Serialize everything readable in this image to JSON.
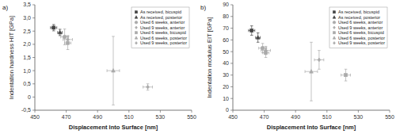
{
  "chart_data": [
    {
      "type": "scatter",
      "title": "a)",
      "xlabel": "Displacement Into Surface [nm]",
      "ylabel": "Indentation hardness HIT [GPa]",
      "xlim": [
        450,
        550
      ],
      "ylim": [
        -0.5,
        3.5
      ],
      "xticks": [
        450,
        470,
        490,
        510,
        530,
        550
      ],
      "yticks": [
        {
          "value": -0.5,
          "label": "-0,5"
        },
        0,
        {
          "value": 0.5,
          "label": "0,5"
        },
        {
          "value": 1.0,
          "label": "1,0"
        },
        {
          "value": 1.5,
          "label": "1,5"
        },
        {
          "value": 2.0,
          "label": "2,0"
        },
        {
          "value": 2.5,
          "label": "2,5"
        },
        {
          "value": 3.0,
          "label": "3,0"
        },
        {
          "value": 3.5,
          "label": "3,5"
        }
      ],
      "legend": "upper right",
      "series": [
        {
          "name": "As received, bicuspid",
          "color": "#444444",
          "marker": "square",
          "x": [
            462
          ],
          "values": [
            2.63
          ],
          "xerr": [
            2.0
          ],
          "yerr": [
            0.12
          ]
        },
        {
          "name": "As received, posterior",
          "color": "#444444",
          "marker": "triangle",
          "x": [
            466
          ],
          "values": [
            2.45
          ],
          "xerr": [
            1.5
          ],
          "yerr": [
            0.12
          ]
        },
        {
          "name": "Used 6 weeks, anterior",
          "color": "#aaaaaa",
          "marker": "circle",
          "x": [
            469
          ],
          "values": [
            2.28
          ],
          "xerr": [
            2.5
          ],
          "yerr": [
            0.3
          ]
        },
        {
          "name": "Used 9 weeks, anterior",
          "color": "#aaaaaa",
          "marker": "diamond",
          "x": [
            471
          ],
          "values": [
            2.18
          ],
          "xerr": [
            3.0
          ],
          "yerr": [
            0.15
          ]
        },
        {
          "name": "Used 6 weeks, bicuspid",
          "color": "#aaaaaa",
          "marker": "square",
          "x": [
            471
          ],
          "values": [
            2.05
          ],
          "xerr": [
            2.0
          ],
          "yerr": [
            0.25
          ]
        },
        {
          "name": "Used 6 weeks, posterior",
          "color": "#aaaaaa",
          "marker": "triangle",
          "x": [
            500
          ],
          "values": [
            1.0
          ],
          "xerr": [
            4.0
          ],
          "yerr": [
            1.3
          ]
        },
        {
          "name": "Used 9 weeks, posterior",
          "color": "#aaaaaa",
          "marker": "diamond",
          "x": [
            522
          ],
          "values": [
            0.38
          ],
          "xerr": [
            3.0
          ],
          "yerr": [
            0.12
          ]
        }
      ]
    },
    {
      "type": "scatter",
      "title": "b)",
      "xlabel": "Displacement Into Surface [nm]",
      "ylabel": "Indentation modulus EIT [GPa]",
      "xlim": [
        450,
        550
      ],
      "ylim": [
        0,
        90
      ],
      "xticks": [
        450,
        470,
        490,
        510,
        530,
        550
      ],
      "yticks": [
        0,
        10,
        20,
        30,
        40,
        50,
        60,
        70,
        80,
        90
      ],
      "legend": "upper right",
      "series": [
        {
          "name": "As received, bicuspid",
          "color": "#444444",
          "marker": "square",
          "x": [
            462
          ],
          "values": [
            68
          ],
          "xerr": [
            2.0
          ],
          "yerr": [
            4.0
          ]
        },
        {
          "name": "As received, posterior",
          "color": "#444444",
          "marker": "triangle",
          "x": [
            466
          ],
          "values": [
            62
          ],
          "xerr": [
            1.5
          ],
          "yerr": [
            4.0
          ]
        },
        {
          "name": "Used 6 weeks, anterior",
          "color": "#aaaaaa",
          "marker": "circle",
          "x": [
            469
          ],
          "values": [
            53
          ],
          "xerr": [
            2.5
          ],
          "yerr": [
            4.0
          ]
        },
        {
          "name": "Used 9 weeks, anterior",
          "color": "#aaaaaa",
          "marker": "diamond",
          "x": [
            471
          ],
          "values": [
            51
          ],
          "xerr": [
            3.0
          ],
          "yerr": [
            3.5
          ]
        },
        {
          "name": "Used 6 weeks, bicuspid",
          "color": "#aaaaaa",
          "marker": "square",
          "x": [
            471
          ],
          "values": [
            49
          ],
          "xerr": [
            2.0
          ],
          "yerr": [
            4.0
          ]
        },
        {
          "name": "Used 6 weeks, posterior",
          "color": "#aaaaaa",
          "marker": "triangle",
          "x": [
            500
          ],
          "values": [
            33
          ],
          "xerr": [
            4.0
          ],
          "yerr": [
            25.0
          ]
        },
        {
          "name": "Used 9 weeks, posterior",
          "color": "#aaaaaa",
          "marker": "diamond",
          "x": [
            505
          ],
          "values": [
            43
          ],
          "xerr": [
            3.0
          ],
          "yerr": [
            8.0
          ]
        },
        {
          "color": "#aaaaaa",
          "marker": "square",
          "x": [
            522
          ],
          "values": [
            30
          ],
          "xerr": [
            3.0
          ],
          "yerr": [
            5.0
          ]
        }
      ]
    }
  ]
}
